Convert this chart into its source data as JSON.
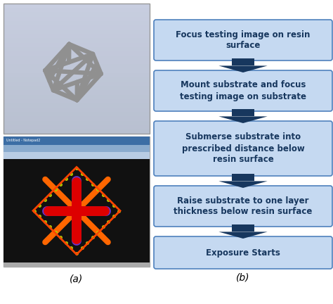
{
  "bg_color": "#ffffff",
  "box_fill": "#c5d9f1",
  "box_edge": "#4f81bd",
  "arrow_color": "#17375e",
  "text_color": "#17375e",
  "label_fontsize": 10,
  "step_fontsize": 8.5,
  "steps": [
    "Focus testing image on resin\nsurface",
    "Mount substrate and focus\ntesting image on substrate",
    "Submerse substrate into\nprescribed distance below\nresin surface",
    "Raise substrate to one layer\nthickness below resin surface",
    "Exposure Starts"
  ],
  "top_img_bg_top": "#c0c8d8",
  "top_img_bg_bot": "#d8dce8",
  "frame_color": "#909090",
  "bot_img_bg": "#000000",
  "titlebar_color": "#3c6ea5",
  "menubar_color": "#8aabce",
  "toolbar_color": "#b8cce4",
  "cross_red": "#ee1111",
  "cross_purple": "#9933cc",
  "dot_yellow": "#cccc00",
  "dot_green": "#66aa00"
}
